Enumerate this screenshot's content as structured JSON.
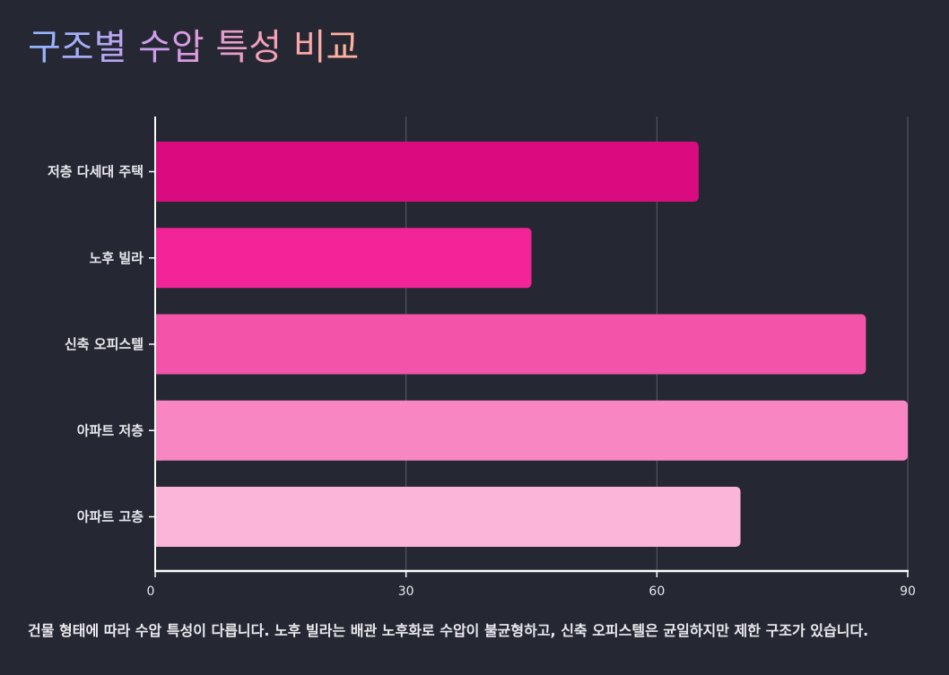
{
  "title": "구조별 수압 특성 비교",
  "caption": "건물 형태에 따라 수압 특성이 다릅니다. 노후 빌라는 배관 노후화로 수압이 불균형하고, 신축 오피스텔은 균일하지만 제한 구조가 있습니다.",
  "chart_data": {
    "type": "bar",
    "orientation": "horizontal",
    "categories": [
      "저층 다세대 주택",
      "노후 빌라",
      "신축 오피스텔",
      "아파트 저층",
      "아파트 고층"
    ],
    "values": [
      65,
      45,
      85,
      90,
      70
    ],
    "colors": [
      "#d90b7e",
      "#f32398",
      "#f354aa",
      "#f786c2",
      "#fbb5d9"
    ],
    "xlim": [
      0,
      90
    ],
    "xticks": [
      0,
      30,
      60,
      90
    ],
    "grid": true,
    "legend": "none"
  }
}
